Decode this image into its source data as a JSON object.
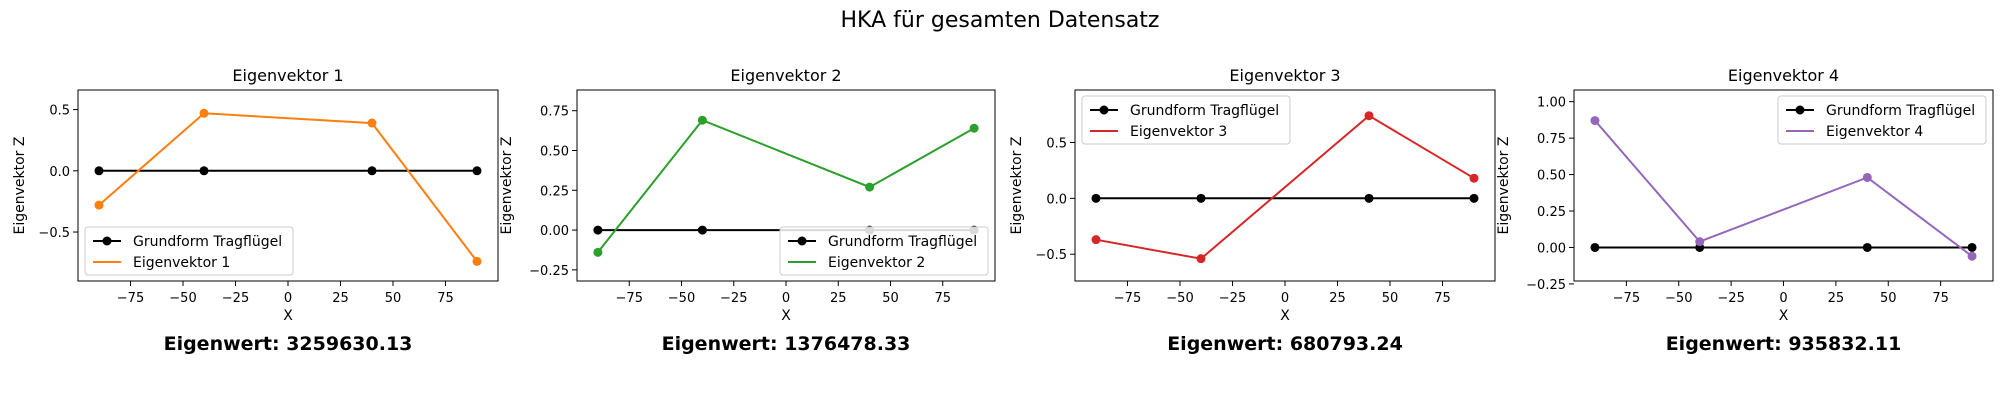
{
  "figure": {
    "suptitle": "HKA für gesamten Datensatz"
  },
  "colors": {
    "baseline": "#000000",
    "series": [
      "#ff7f0e",
      "#2ca02c",
      "#d62728",
      "#9467bd"
    ]
  },
  "chart_data": [
    {
      "type": "line",
      "title": "Eigenvektor 1",
      "xlabel": "X",
      "ylabel": "Eigenvektor Z",
      "x": [
        -90,
        -40,
        40,
        90
      ],
      "series": [
        {
          "name": "Grundform Tragflügel",
          "values": [
            0,
            0,
            0,
            0
          ]
        },
        {
          "name": "Eigenvektor 1",
          "values": [
            -0.28,
            0.47,
            0.39,
            -0.74
          ]
        }
      ],
      "xlim": [
        -100,
        100
      ],
      "ylim": [
        -0.9,
        0.66
      ],
      "xticks": [
        -75,
        -50,
        -25,
        0,
        25,
        50,
        75
      ],
      "xticklabels": [
        "−75",
        "−50",
        "−25",
        "0",
        "25",
        "50",
        "75"
      ],
      "yticks": [
        -0.5,
        0,
        0.5
      ],
      "yticklabels": [
        "−0.5",
        "0.0",
        "0.5"
      ],
      "legend_position": "lower-left",
      "eigenvalue_label": "Eigenwert: 3259630.13"
    },
    {
      "type": "line",
      "title": "Eigenvektor 2",
      "xlabel": "X",
      "ylabel": "Eigenvektor Z",
      "x": [
        -90,
        -40,
        40,
        90
      ],
      "series": [
        {
          "name": "Grundform Tragflügel",
          "values": [
            0,
            0,
            0,
            0
          ]
        },
        {
          "name": "Eigenvektor 2",
          "values": [
            -0.14,
            0.69,
            0.27,
            0.64
          ]
        }
      ],
      "xlim": [
        -100,
        100
      ],
      "ylim": [
        -0.32,
        0.88
      ],
      "xticks": [
        -75,
        -50,
        -25,
        0,
        25,
        50,
        75
      ],
      "xticklabels": [
        "−75",
        "−50",
        "−25",
        "0",
        "25",
        "50",
        "75"
      ],
      "yticks": [
        -0.25,
        0,
        0.25,
        0.5,
        0.75
      ],
      "yticklabels": [
        "−0.25",
        "0.00",
        "0.25",
        "0.50",
        "0.75"
      ],
      "legend_position": "lower-right",
      "eigenvalue_label": "Eigenwert: 1376478.33"
    },
    {
      "type": "line",
      "title": "Eigenvektor 3",
      "xlabel": "X",
      "ylabel": "Eigenvektor Z",
      "x": [
        -90,
        -40,
        40,
        90
      ],
      "series": [
        {
          "name": "Grundform Tragflügel",
          "values": [
            0,
            0,
            0,
            0
          ]
        },
        {
          "name": "Eigenvektor 3",
          "values": [
            -0.37,
            -0.54,
            0.74,
            0.18
          ]
        }
      ],
      "xlim": [
        -100,
        100
      ],
      "ylim": [
        -0.74,
        0.97
      ],
      "xticks": [
        -75,
        -50,
        -25,
        0,
        25,
        50,
        75
      ],
      "xticklabels": [
        "−75",
        "−50",
        "−25",
        "0",
        "25",
        "50",
        "75"
      ],
      "yticks": [
        -0.5,
        0,
        0.5
      ],
      "yticklabels": [
        "−0.5",
        "0.0",
        "0.5"
      ],
      "legend_position": "upper-left",
      "eigenvalue_label": "Eigenwert: 680793.24"
    },
    {
      "type": "line",
      "title": "Eigenvektor 4",
      "xlabel": "X",
      "ylabel": "Eigenvektor Z",
      "x": [
        -90,
        -40,
        40,
        90
      ],
      "series": [
        {
          "name": "Grundform Tragflügel",
          "values": [
            0,
            0,
            0,
            0
          ]
        },
        {
          "name": "Eigenvektor 4",
          "values": [
            0.87,
            0.04,
            0.48,
            -0.06
          ]
        }
      ],
      "xlim": [
        -100,
        100
      ],
      "ylim": [
        -0.23,
        1.08
      ],
      "xticks": [
        -75,
        -50,
        -25,
        0,
        25,
        50,
        75
      ],
      "xticklabels": [
        "−75",
        "−50",
        "−25",
        "0",
        "25",
        "50",
        "75"
      ],
      "yticks": [
        -0.25,
        0,
        0.25,
        0.5,
        0.75,
        1.0
      ],
      "yticklabels": [
        "−0.25",
        "0.00",
        "0.25",
        "0.50",
        "0.75",
        "1.00"
      ],
      "legend_position": "upper-right",
      "eigenvalue_label": "Eigenwert: 935832.11"
    }
  ]
}
